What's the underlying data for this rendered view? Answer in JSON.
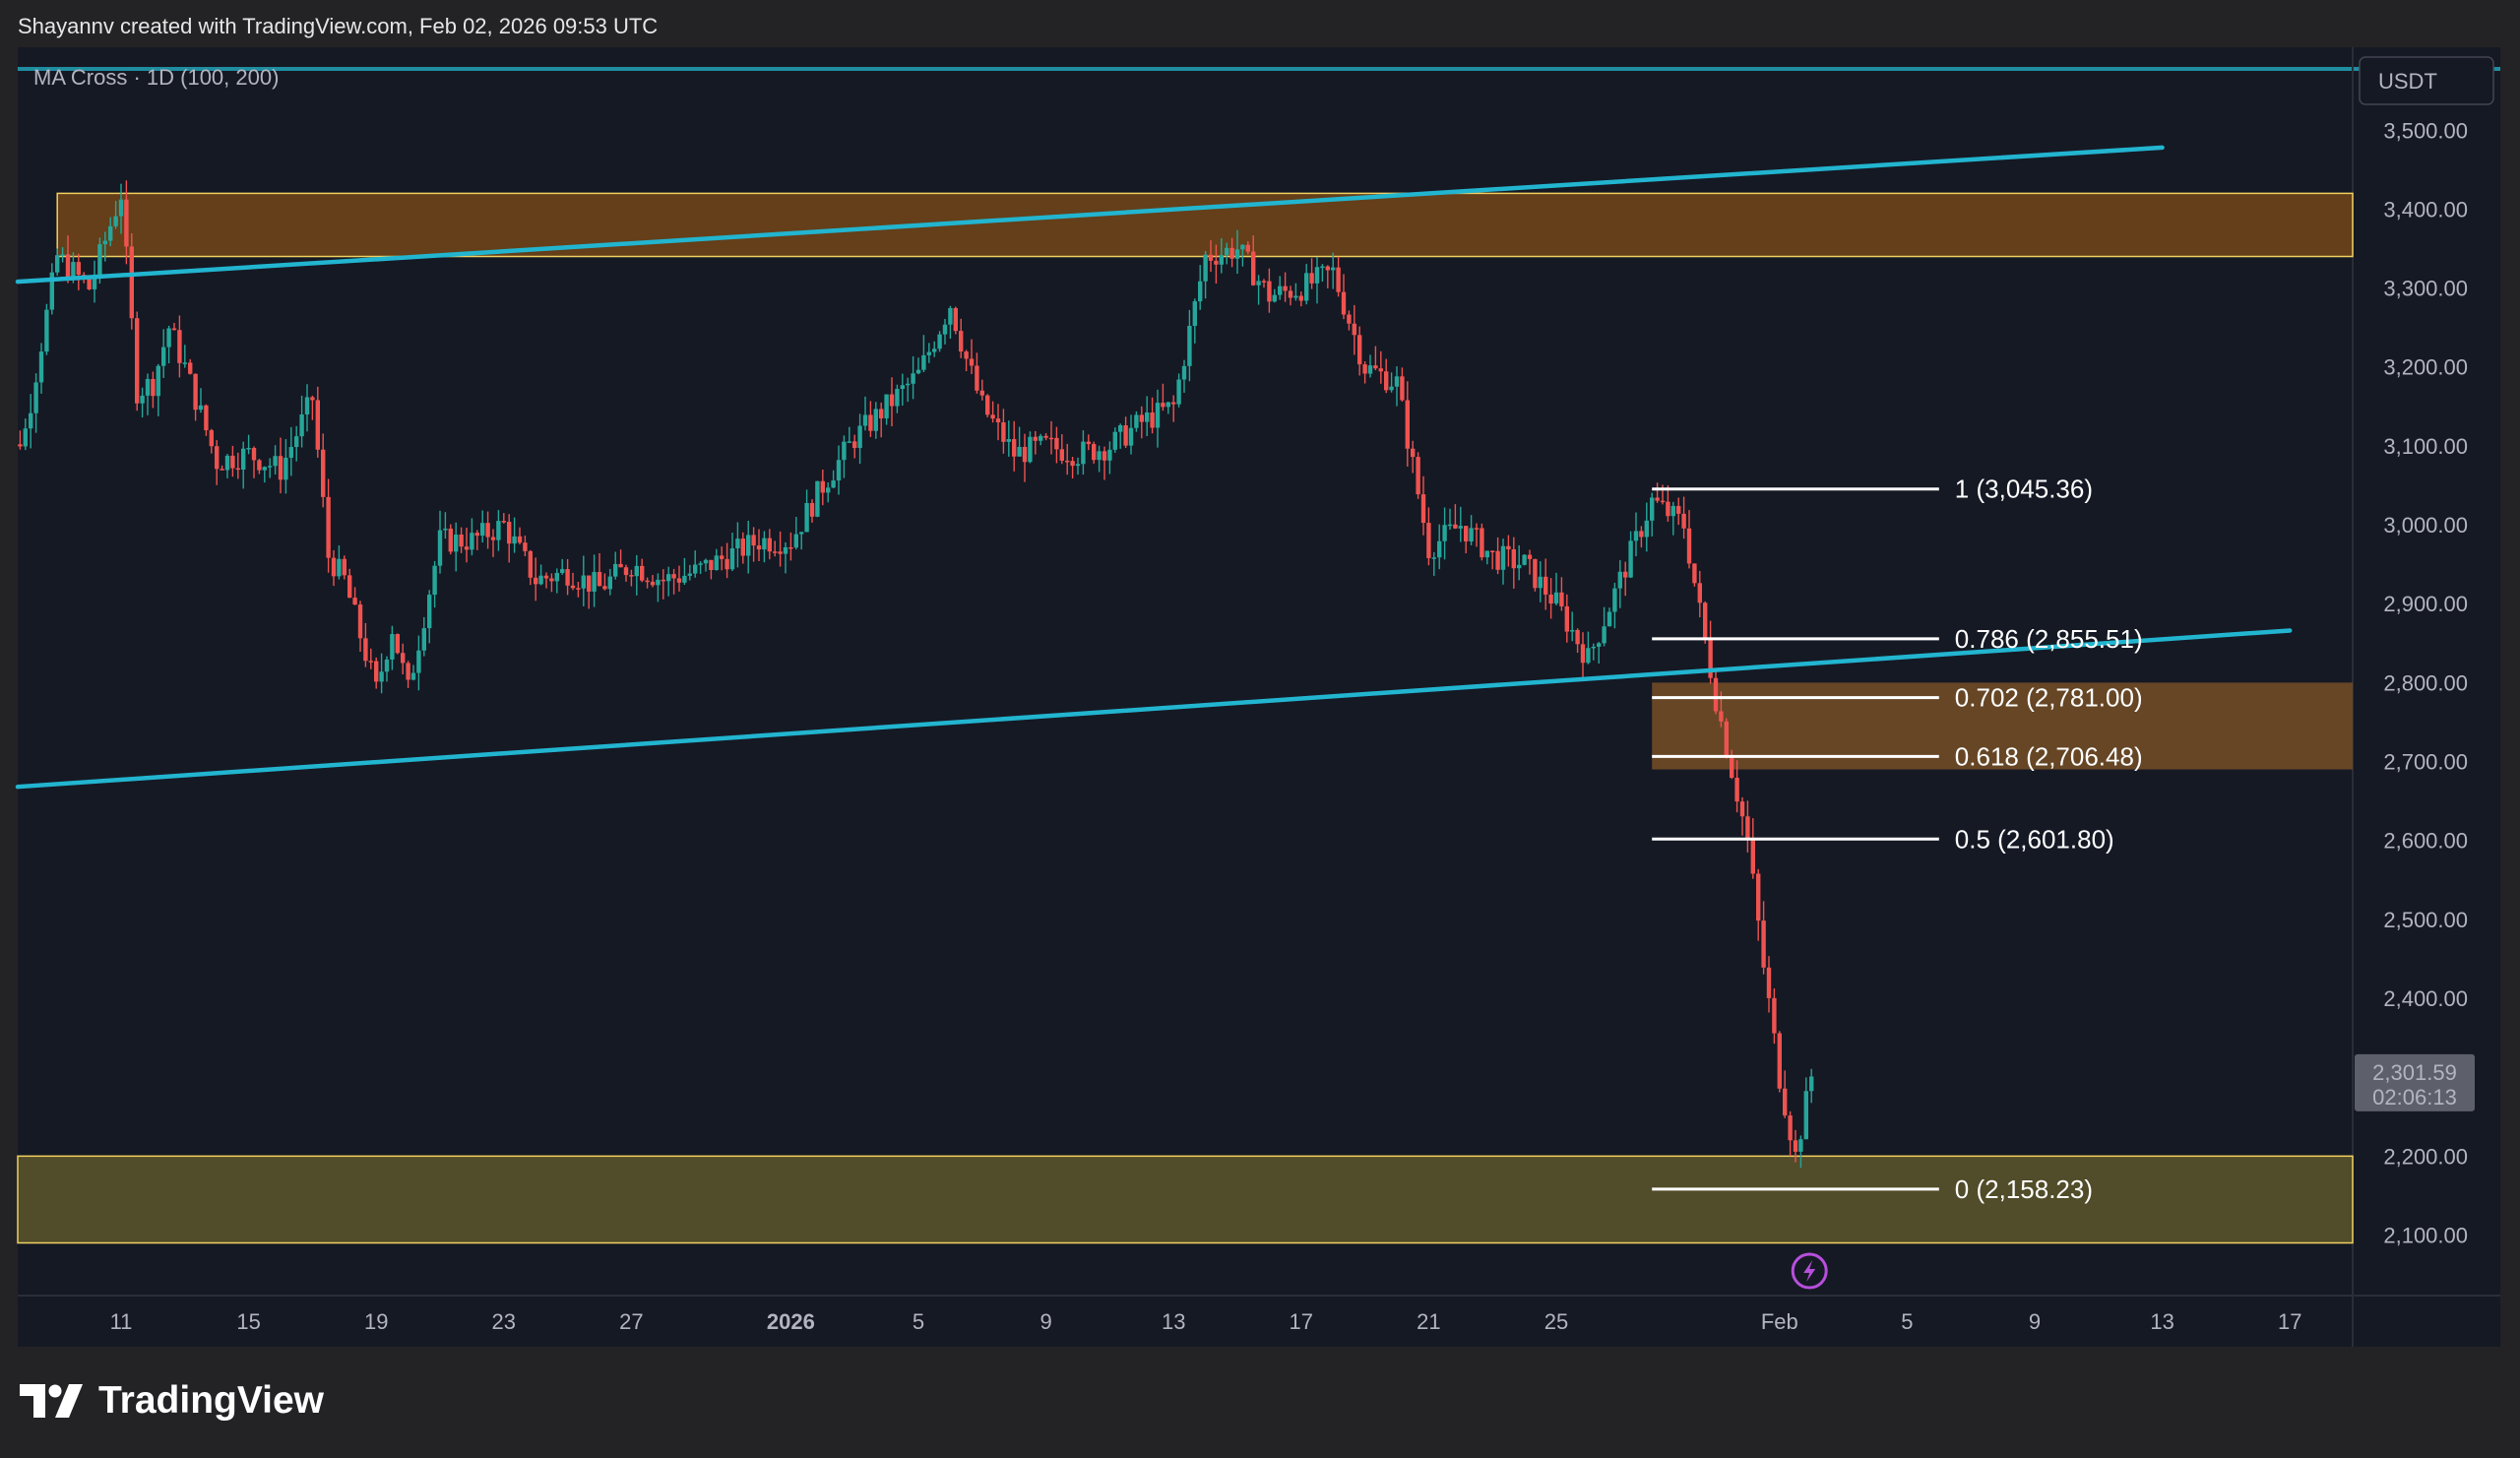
{
  "header": {
    "attribution": "Shayannv created with TradingView.com, Feb 02, 2026 09:53 UTC"
  },
  "indicator": {
    "label": "MA Cross · 1D (100, 200)"
  },
  "footer": {
    "brand": "TradingView"
  },
  "price_axis": {
    "currency": "USDT"
  },
  "current_price": {
    "value": "2,301.59",
    "countdown": "02:06:13"
  },
  "colors": {
    "background": "#151924",
    "page": "#232325",
    "up": "#26a69a",
    "down": "#ef5350",
    "channel": "#22b5d0",
    "resistance_zone": "#6b4219",
    "support_zone": "#57502a",
    "zone_border": "#f0d060",
    "fib_line": "#ffffff",
    "alert_icon": "#b84fdc"
  },
  "chart_data": {
    "type": "candlestick",
    "symbol_quote": "USDT",
    "timeframe": "4h",
    "ylim": [
      2045,
      3570
    ],
    "yticks": [
      "2,100.00",
      "2,200.00",
      "2,300.00",
      "2,400.00",
      "2,500.00",
      "2,600.00",
      "2,700.00",
      "2,800.00",
      "2,900.00",
      "3,000.00",
      "3,100.00",
      "3,200.00",
      "3,300.00",
      "3,400.00",
      "3,500.00"
    ],
    "xticks": [
      {
        "label": "11",
        "date": "2025-12-11"
      },
      {
        "label": "15",
        "date": "2025-12-15"
      },
      {
        "label": "19",
        "date": "2025-12-19"
      },
      {
        "label": "23",
        "date": "2025-12-23"
      },
      {
        "label": "27",
        "date": "2025-12-27"
      },
      {
        "label": "2026",
        "date": "2026-01-01",
        "bold": true
      },
      {
        "label": "5",
        "date": "2026-01-05"
      },
      {
        "label": "9",
        "date": "2026-01-09"
      },
      {
        "label": "13",
        "date": "2026-01-13"
      },
      {
        "label": "17",
        "date": "2026-01-17"
      },
      {
        "label": "21",
        "date": "2026-01-21"
      },
      {
        "label": "25",
        "date": "2026-01-25"
      },
      {
        "label": "Feb",
        "date": "2026-02-01"
      },
      {
        "label": "5",
        "date": "2026-02-05"
      },
      {
        "label": "9",
        "date": "2026-02-09"
      },
      {
        "label": "13",
        "date": "2026-02-13"
      },
      {
        "label": "17",
        "date": "2026-02-17"
      }
    ],
    "price_path": [
      [
        "2025-12-07",
        3050
      ],
      [
        "2025-12-08",
        3120
      ],
      [
        "2025-12-09",
        3340
      ],
      [
        "2025-12-10",
        3300
      ],
      [
        "2025-12-11",
        3420
      ],
      [
        "2025-12-11T12:00",
        3170
      ],
      [
        "2025-12-12",
        3180
      ],
      [
        "2025-12-12T12:00",
        3250
      ],
      [
        "2025-12-13",
        3200
      ],
      [
        "2025-12-14",
        3080
      ],
      [
        "2025-12-15",
        3090
      ],
      [
        "2025-12-16",
        3070
      ],
      [
        "2025-12-17",
        3160
      ],
      [
        "2025-12-17T12:00",
        2960
      ],
      [
        "2025-12-18",
        2930
      ],
      [
        "2025-12-19",
        2790
      ],
      [
        "2025-12-19T12:00",
        2870
      ],
      [
        "2025-12-20",
        2790
      ],
      [
        "2025-12-21",
        2980
      ],
      [
        "2025-12-22",
        2980
      ],
      [
        "2025-12-23",
        3000
      ],
      [
        "2025-12-24",
        2930
      ],
      [
        "2025-12-25",
        2940
      ],
      [
        "2025-12-26",
        2920
      ],
      [
        "2025-12-27",
        2950
      ],
      [
        "2025-12-28",
        2930
      ],
      [
        "2025-12-29",
        2940
      ],
      [
        "2025-12-30",
        2960
      ],
      [
        "2025-12-31",
        2980
      ],
      [
        "2026-01-01",
        2980
      ],
      [
        "2026-01-02",
        3050
      ],
      [
        "2026-01-03",
        3110
      ],
      [
        "2026-01-04",
        3150
      ],
      [
        "2026-01-05",
        3190
      ],
      [
        "2026-01-06",
        3280
      ],
      [
        "2026-01-06T12:00",
        3210
      ],
      [
        "2026-01-07",
        3150
      ],
      [
        "2026-01-08",
        3090
      ],
      [
        "2026-01-09",
        3100
      ],
      [
        "2026-01-10",
        3090
      ],
      [
        "2026-01-11",
        3100
      ],
      [
        "2026-01-12",
        3130
      ],
      [
        "2026-01-13",
        3150
      ],
      [
        "2026-01-14",
        3340
      ],
      [
        "2026-01-15",
        3350
      ],
      [
        "2026-01-16",
        3290
      ],
      [
        "2026-01-17",
        3300
      ],
      [
        "2026-01-18",
        3320
      ],
      [
        "2026-01-19",
        3200
      ],
      [
        "2026-01-20",
        3180
      ],
      [
        "2026-01-21",
        2970
      ],
      [
        "2026-01-22",
        3000
      ],
      [
        "2026-01-23",
        2960
      ],
      [
        "2026-01-24",
        2950
      ],
      [
        "2026-01-25",
        2900
      ],
      [
        "2026-01-26",
        2830
      ],
      [
        "2026-01-27",
        2930
      ],
      [
        "2026-01-28",
        3030
      ],
      [
        "2026-01-29",
        3000
      ],
      [
        "2026-01-30",
        2780
      ],
      [
        "2026-01-31",
        2600
      ],
      [
        "2026-01-31T12:00",
        2440
      ],
      [
        "2026-02-01",
        2300
      ],
      [
        "2026-02-01T12:00",
        2200
      ],
      [
        "2026-02-02",
        2301.59
      ]
    ],
    "horizontal_zones": [
      {
        "name": "resistance",
        "from_date": "2025-12-09",
        "low": 3340,
        "high": 3420
      },
      {
        "name": "fib-zone",
        "from_date": "2026-01-28",
        "low": 2690,
        "high": 2800
      },
      {
        "name": "support",
        "from_date": "2025-12-07",
        "low": 2090,
        "high": 2200
      }
    ],
    "trendlines": [
      {
        "name": "channel-upper",
        "points": [
          [
            "2025-12-07",
            3308
          ],
          [
            "2026-02-13",
            3478
          ]
        ]
      },
      {
        "name": "channel-lower",
        "points": [
          [
            "2025-12-07",
            2668
          ],
          [
            "2026-02-17",
            2866
          ]
        ]
      }
    ],
    "fibonacci": {
      "start_date": "2026-01-28",
      "end_date": "2026-02-06",
      "levels": [
        {
          "ratio": "1",
          "price": 3045.36,
          "label": "1 (3,045.36)"
        },
        {
          "ratio": "0.786",
          "price": 2855.51,
          "label": "0.786 (2,855.51)"
        },
        {
          "ratio": "0.702",
          "price": 2781.0,
          "label": "0.702 (2,781.00)"
        },
        {
          "ratio": "0.618",
          "price": 2706.48,
          "label": "0.618 (2,706.48)"
        },
        {
          "ratio": "0.5",
          "price": 2601.8,
          "label": "0.5 (2,601.80)"
        },
        {
          "ratio": "0",
          "price": 2158.23,
          "label": "0 (2,158.23)"
        }
      ]
    },
    "last_price": 2301.59,
    "last_price_label": "2,301.59",
    "countdown": "02:06:13"
  }
}
